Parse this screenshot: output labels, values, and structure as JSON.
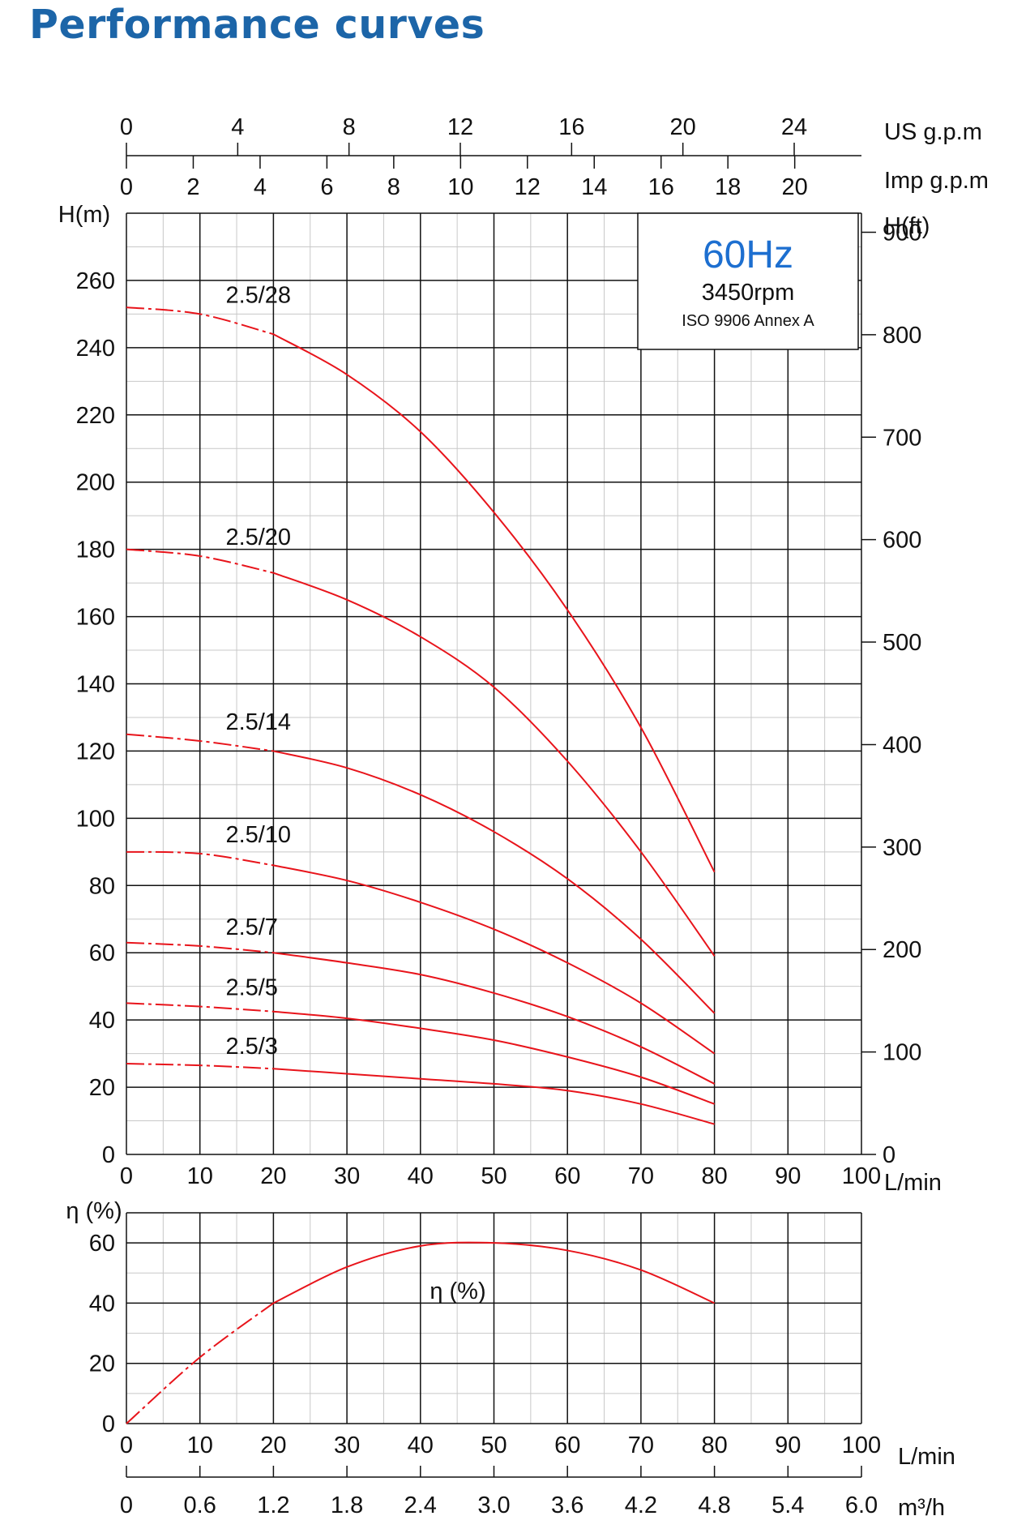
{
  "title": "Performance curves",
  "colors": {
    "title": "#1c65a8",
    "curve": "#e8141b",
    "hz": "#1d6fd0",
    "grid": "#111111",
    "minor_grid": "#c8c8c8"
  },
  "chart_data": [
    {
      "type": "line",
      "name": "head",
      "xlabel": "L/min",
      "ylabel": "H(m)",
      "y2label": "H(ft)",
      "top_axes": [
        {
          "label": "US g.p.m",
          "ticks": [
            0,
            4,
            8,
            12,
            16,
            20,
            24
          ]
        },
        {
          "label": "Imp g.p.m",
          "ticks": [
            0,
            2,
            4,
            6,
            8,
            10,
            12,
            14,
            16,
            18,
            20
          ]
        }
      ],
      "xlim": [
        0,
        100
      ],
      "ylim": [
        0,
        280
      ],
      "y2lim": [
        0,
        918.6
      ],
      "xticks": [
        0,
        10,
        20,
        30,
        40,
        50,
        60,
        70,
        80,
        90,
        100
      ],
      "yticks": [
        0,
        20,
        40,
        60,
        80,
        100,
        120,
        140,
        160,
        180,
        200,
        220,
        240,
        260
      ],
      "y2ticks": [
        0,
        100,
        200,
        300,
        400,
        500,
        600,
        700,
        800,
        900
      ],
      "grid": true,
      "annotations": {
        "frequency": "60Hz",
        "speed": "3450rpm",
        "standard": "ISO 9906 Annex A"
      },
      "x": [
        0,
        10,
        20,
        30,
        40,
        50,
        60,
        70,
        80
      ],
      "series": [
        {
          "name": "2.5/28",
          "values": [
            252,
            250,
            244,
            232,
            215,
            191,
            162,
            127,
            84
          ]
        },
        {
          "name": "2.5/20",
          "values": [
            180,
            178,
            173,
            165,
            154,
            139,
            117,
            90,
            59
          ]
        },
        {
          "name": "2.5/14",
          "values": [
            125,
            123,
            120,
            115,
            107,
            96,
            82,
            64,
            42
          ]
        },
        {
          "name": "2.5/10",
          "values": [
            90,
            89.5,
            86,
            81.5,
            75,
            67,
            57,
            45,
            30
          ]
        },
        {
          "name": "2.5/7",
          "values": [
            63,
            62,
            60,
            57,
            53.5,
            48,
            41,
            32,
            21
          ]
        },
        {
          "name": "2.5/5",
          "values": [
            45,
            44,
            42.5,
            40.5,
            37.5,
            34,
            29,
            23,
            15
          ]
        },
        {
          "name": "2.5/3",
          "values": [
            27,
            26.5,
            25.5,
            24,
            22.5,
            21,
            19,
            15,
            9
          ]
        }
      ],
      "dashed_until_x": 20
    },
    {
      "type": "line",
      "name": "efficiency",
      "ylabel": "η (%)",
      "xlabel": "L/min",
      "bottom_axis": {
        "label": "m³/h",
        "ticks": [
          "0",
          "0.6",
          "1.2",
          "1.8",
          "2.4",
          "3.0",
          "3.6",
          "4.2",
          "4.8",
          "5.4",
          "6.0"
        ]
      },
      "xlim": [
        0,
        100
      ],
      "ylim": [
        0,
        70
      ],
      "xticks": [
        0,
        10,
        20,
        30,
        40,
        50,
        60,
        70,
        80,
        90,
        100
      ],
      "yticks": [
        0,
        20,
        40,
        60
      ],
      "grid": true,
      "x": [
        0,
        10,
        20,
        30,
        40,
        50,
        60,
        70,
        80
      ],
      "series": [
        {
          "label": "η (%)",
          "values": [
            0,
            22,
            40,
            52,
            59,
            60,
            57.5,
            51,
            40
          ]
        }
      ],
      "dashed_until_x": 20
    }
  ]
}
